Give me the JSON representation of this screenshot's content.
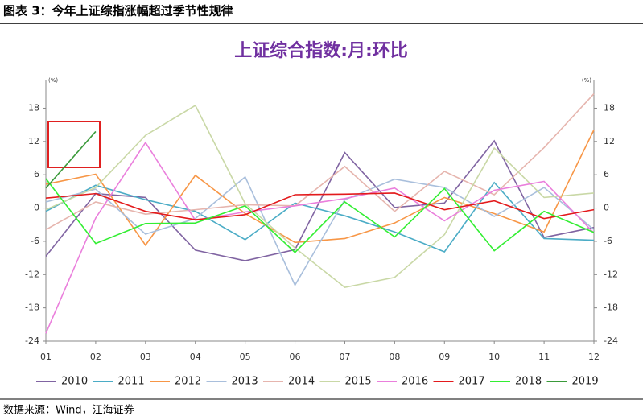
{
  "header": "图表 3：今年上证综指涨幅超过季节性规律",
  "source": "数据来源：Wind，江海证券",
  "chart_data": {
    "type": "line",
    "title": "上证综合指数:月:环比",
    "y_unit": "(%)",
    "y2_unit": "(%)",
    "categories": [
      "01",
      "02",
      "03",
      "04",
      "05",
      "06",
      "07",
      "08",
      "09",
      "10",
      "11",
      "12"
    ],
    "ylim": [
      -24,
      23
    ],
    "yticks": [
      -24,
      -18,
      -12,
      -6,
      0,
      6,
      12,
      18
    ],
    "y2lim": [
      -24,
      23
    ],
    "y2ticks": [
      -24,
      -18,
      -12,
      -6,
      0,
      6,
      12,
      18
    ],
    "series": [
      {
        "name": "2010",
        "color": "#8064a2",
        "values": [
          -8.7,
          2.6,
          1.9,
          -7.6,
          -9.5,
          -7.5,
          10.0,
          0.1,
          0.9,
          12.1,
          -5.3,
          -3.5
        ]
      },
      {
        "name": "2011",
        "color": "#4bacc6",
        "values": [
          -0.6,
          4.1,
          1.5,
          -0.6,
          -5.7,
          0.9,
          -1.4,
          -4.3,
          -7.9,
          4.6,
          -5.5,
          -5.8
        ]
      },
      {
        "name": "2012",
        "color": "#f79646",
        "values": [
          4.3,
          6.1,
          -6.7,
          5.9,
          -1.0,
          -6.2,
          -5.5,
          -2.7,
          1.9,
          -1.0,
          -4.3,
          14.1
        ]
      },
      {
        "name": "2013",
        "color": "#a9bfdc",
        "values": [
          1.1,
          3.4,
          -4.7,
          -1.9,
          5.6,
          -13.9,
          1.5,
          5.2,
          3.7,
          -1.5,
          3.7,
          -3.9
        ]
      },
      {
        "name": "2014",
        "color": "#e6b5ae",
        "values": [
          -3.9,
          1.1,
          -1.1,
          -0.3,
          0.6,
          0.4,
          7.5,
          -0.6,
          6.6,
          2.4,
          10.9,
          20.6
        ]
      },
      {
        "name": "2015",
        "color": "#c9d8a6",
        "values": [
          -0.3,
          3.7,
          13.1,
          18.5,
          0.8,
          -7.2,
          -14.3,
          -12.5,
          -4.8,
          10.8,
          1.9,
          2.7
        ]
      },
      {
        "name": "2016",
        "color": "#ea7fdc",
        "values": [
          -22.6,
          -1.8,
          11.8,
          -2.2,
          -0.7,
          0.4,
          1.7,
          3.6,
          -2.3,
          3.2,
          4.8,
          -4.5
        ]
      },
      {
        "name": "2017",
        "color": "#e31a1c",
        "values": [
          1.8,
          2.6,
          -0.6,
          -2.1,
          -1.2,
          2.4,
          2.5,
          2.7,
          -0.3,
          1.3,
          -1.9,
          -0.3
        ]
      },
      {
        "name": "2018",
        "color": "#33ee33",
        "values": [
          5.3,
          -6.4,
          -2.8,
          -2.7,
          0.4,
          -8.0,
          1.1,
          -5.2,
          3.5,
          -7.7,
          -0.6,
          -4.4
        ]
      },
      {
        "name": "2019",
        "color": "#3a9a3a",
        "values": [
          3.6,
          13.8,
          null,
          null,
          null,
          null,
          null,
          null,
          null,
          null,
          null,
          null
        ]
      }
    ]
  }
}
